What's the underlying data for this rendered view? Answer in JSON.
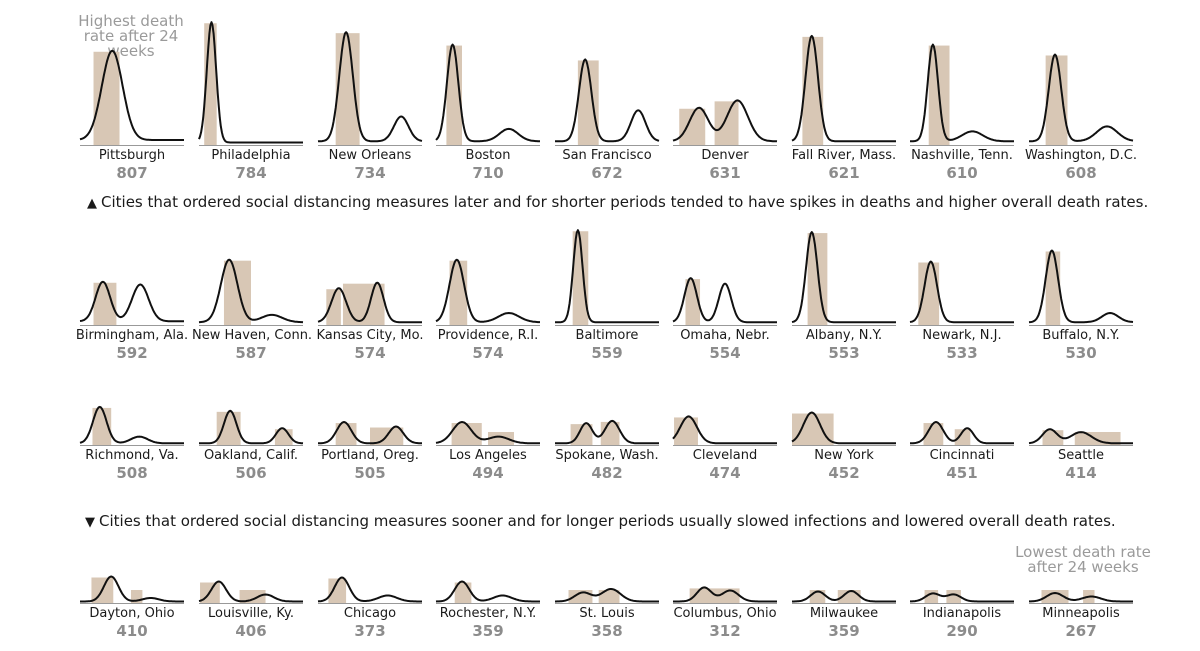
{
  "annotations": {
    "top_left": "Highest death rate after 24 weeks",
    "bottom_right": "Lowest death rate after 24 weeks",
    "note_later": "Cities that ordered social distancing measures later and for shorter periods tended to have spikes in deaths and higher overall death rates.",
    "note_sooner": "Cities that ordered social distancing measures sooner and for longer periods usually slowed infections and lowered overall death rates.",
    "triangle_up": "▲",
    "triangle_down": "▼"
  },
  "colors": {
    "curve": "#111111",
    "shading": "#d8c7b5",
    "baseline": "#999999",
    "rate": "#8c8c8c"
  },
  "chart_data": {
    "type": "line",
    "description_series": "Weekly death curve over 24 weeks with shaded social distancing periods",
    "cities": [
      {
        "name": "Pittsburgh",
        "rate": 807,
        "peaks": [
          [
            0.31,
            0.72,
            0.1
          ]
        ],
        "tail": 0.04,
        "distancing": [
          [
            0.13,
            0.38
          ]
        ]
      },
      {
        "name": "Philadelphia",
        "rate": 784,
        "peaks": [
          [
            0.12,
            0.97,
            0.045
          ]
        ],
        "tail": 0.02,
        "distancing": [
          [
            0.05,
            0.17
          ]
        ]
      },
      {
        "name": "New Orleans",
        "rate": 734,
        "peaks": [
          [
            0.27,
            0.88,
            0.065
          ],
          [
            0.8,
            0.2,
            0.07
          ]
        ],
        "tail": 0.03,
        "distancing": [
          [
            0.17,
            0.4
          ]
        ]
      },
      {
        "name": "Boston",
        "rate": 710,
        "peaks": [
          [
            0.16,
            0.78,
            0.055
          ],
          [
            0.7,
            0.1,
            0.09
          ]
        ],
        "tail": 0.03,
        "distancing": [
          [
            0.1,
            0.25
          ]
        ]
      },
      {
        "name": "San Francisco",
        "rate": 672,
        "peaks": [
          [
            0.29,
            0.66,
            0.06
          ],
          [
            0.8,
            0.25,
            0.07
          ]
        ],
        "tail": 0.03,
        "distancing": [
          [
            0.22,
            0.42
          ]
        ]
      },
      {
        "name": "Denver",
        "rate": 631,
        "peaks": [
          [
            0.25,
            0.27,
            0.09
          ],
          [
            0.62,
            0.33,
            0.1
          ]
        ],
        "tail": 0.03,
        "distancing": [
          [
            0.06,
            0.31
          ],
          [
            0.4,
            0.63
          ]
        ]
      },
      {
        "name": "Fall River, Mass.",
        "rate": 621,
        "peaks": [
          [
            0.19,
            0.85,
            0.06
          ]
        ],
        "tail": 0.03,
        "distancing": [
          [
            0.1,
            0.3
          ]
        ]
      },
      {
        "name": "Nashville, Tenn.",
        "rate": 610,
        "peaks": [
          [
            0.22,
            0.78,
            0.05
          ],
          [
            0.6,
            0.08,
            0.1
          ]
        ],
        "tail": 0.03,
        "distancing": [
          [
            0.18,
            0.38
          ]
        ]
      },
      {
        "name": "Washington, D.C.",
        "rate": 608,
        "peaks": [
          [
            0.25,
            0.7,
            0.06
          ],
          [
            0.75,
            0.12,
            0.1
          ]
        ],
        "tail": 0.03,
        "distancing": [
          [
            0.16,
            0.37
          ]
        ]
      },
      {
        "name": "Birmingham, Ala.",
        "rate": 592,
        "peaks": [
          [
            0.22,
            0.43,
            0.07
          ],
          [
            0.58,
            0.4,
            0.08
          ]
        ],
        "tail": 0.04,
        "distancing": [
          [
            0.13,
            0.35
          ]
        ]
      },
      {
        "name": "New Haven, Conn.",
        "rate": 587,
        "peaks": [
          [
            0.29,
            0.68,
            0.08
          ],
          [
            0.7,
            0.08,
            0.1
          ]
        ],
        "tail": 0.03,
        "distancing": [
          [
            0.24,
            0.5
          ]
        ]
      },
      {
        "name": "Kansas City, Mo.",
        "rate": 574,
        "peaks": [
          [
            0.2,
            0.37,
            0.07
          ],
          [
            0.57,
            0.43,
            0.06
          ]
        ],
        "tail": 0.03,
        "distancing": [
          [
            0.08,
            0.22
          ],
          [
            0.24,
            0.64
          ]
        ]
      },
      {
        "name": "Providence, R.I.",
        "rate": 574,
        "peaks": [
          [
            0.2,
            0.68,
            0.07
          ],
          [
            0.7,
            0.1,
            0.1
          ]
        ],
        "tail": 0.03,
        "distancing": [
          [
            0.13,
            0.3
          ]
        ]
      },
      {
        "name": "Baltimore",
        "rate": 559,
        "peaks": [
          [
            0.22,
            1.0,
            0.045
          ]
        ],
        "tail": 0.03,
        "distancing": [
          [
            0.17,
            0.32
          ]
        ]
      },
      {
        "name": "Omaha, Nebr.",
        "rate": 554,
        "peaks": [
          [
            0.17,
            0.48,
            0.06
          ],
          [
            0.5,
            0.42,
            0.06
          ]
        ],
        "tail": 0.03,
        "distancing": [
          [
            0.12,
            0.26
          ]
        ]
      },
      {
        "name": "Albany, N.Y.",
        "rate": 553,
        "peaks": [
          [
            0.19,
            0.98,
            0.055
          ]
        ],
        "tail": 0.03,
        "distancing": [
          [
            0.15,
            0.34
          ]
        ]
      },
      {
        "name": "Newark, N.J.",
        "rate": 533,
        "peaks": [
          [
            0.2,
            0.66,
            0.06
          ]
        ],
        "tail": 0.03,
        "distancing": [
          [
            0.08,
            0.28
          ]
        ]
      },
      {
        "name": "Buffalo, N.Y.",
        "rate": 530,
        "peaks": [
          [
            0.22,
            0.78,
            0.06
          ],
          [
            0.78,
            0.1,
            0.08
          ]
        ],
        "tail": 0.03,
        "distancing": [
          [
            0.16,
            0.3
          ]
        ]
      },
      {
        "name": "Richmond, Va.",
        "rate": 508,
        "peaks": [
          [
            0.19,
            0.65,
            0.065
          ],
          [
            0.57,
            0.12,
            0.08
          ]
        ],
        "tail": 0.03,
        "distancing": [
          [
            0.12,
            0.3
          ]
        ]
      },
      {
        "name": "Oakland, Calif.",
        "rate": 506,
        "peaks": [
          [
            0.3,
            0.58,
            0.06
          ],
          [
            0.8,
            0.27,
            0.06
          ]
        ],
        "tail": 0.03,
        "distancing": [
          [
            0.17,
            0.4
          ],
          [
            0.73,
            0.9
          ]
        ]
      },
      {
        "name": "Portland, Oreg.",
        "rate": 505,
        "peaks": [
          [
            0.25,
            0.38,
            0.07
          ],
          [
            0.75,
            0.3,
            0.07
          ]
        ],
        "tail": 0.03,
        "distancing": [
          [
            0.17,
            0.37
          ],
          [
            0.5,
            0.82
          ]
        ]
      },
      {
        "name": "Los Angeles",
        "rate": 494,
        "peaks": [
          [
            0.25,
            0.38,
            0.09
          ],
          [
            0.6,
            0.12,
            0.1
          ]
        ],
        "tail": 0.03,
        "distancing": [
          [
            0.15,
            0.44
          ],
          [
            0.5,
            0.75
          ]
        ]
      },
      {
        "name": "Spokane, Wash.",
        "rate": 482,
        "peaks": [
          [
            0.3,
            0.36,
            0.06
          ],
          [
            0.55,
            0.4,
            0.07
          ]
        ],
        "tail": 0.03,
        "distancing": [
          [
            0.15,
            0.36
          ],
          [
            0.44,
            0.62
          ]
        ]
      },
      {
        "name": "Cleveland",
        "rate": 474,
        "peaks": [
          [
            0.15,
            0.48,
            0.08
          ]
        ],
        "tail": 0.03,
        "distancing": [
          [
            0.01,
            0.24
          ]
        ]
      },
      {
        "name": "New York",
        "rate": 452,
        "peaks": [
          [
            0.19,
            0.55,
            0.08
          ]
        ],
        "tail": 0.03,
        "distancing": [
          [
            0.0,
            0.4
          ]
        ]
      },
      {
        "name": "Cincinnati",
        "rate": 451,
        "peaks": [
          [
            0.25,
            0.38,
            0.07
          ],
          [
            0.55,
            0.27,
            0.06
          ]
        ],
        "tail": 0.03,
        "distancing": [
          [
            0.13,
            0.32
          ],
          [
            0.43,
            0.58
          ]
        ]
      },
      {
        "name": "Seattle",
        "rate": 414,
        "peaks": [
          [
            0.2,
            0.25,
            0.07
          ],
          [
            0.5,
            0.2,
            0.1
          ]
        ],
        "tail": 0.03,
        "distancing": [
          [
            0.13,
            0.33
          ],
          [
            0.44,
            0.88
          ]
        ]
      },
      {
        "name": "Dayton, Ohio",
        "rate": 410,
        "peaks": [
          [
            0.3,
            0.5,
            0.07
          ],
          [
            0.68,
            0.07,
            0.08
          ]
        ],
        "tail": 0.03,
        "distancing": [
          [
            0.11,
            0.32
          ],
          [
            0.49,
            0.6
          ]
        ]
      },
      {
        "name": "Louisville, Ky.",
        "rate": 406,
        "peaks": [
          [
            0.19,
            0.4,
            0.07
          ],
          [
            0.64,
            0.14,
            0.08
          ]
        ],
        "tail": 0.03,
        "distancing": [
          [
            0.01,
            0.2
          ],
          [
            0.39,
            0.64
          ]
        ]
      },
      {
        "name": "Chicago",
        "rate": 373,
        "peaks": [
          [
            0.23,
            0.48,
            0.07
          ],
          [
            0.67,
            0.12,
            0.09
          ]
        ],
        "tail": 0.03,
        "distancing": [
          [
            0.1,
            0.27
          ]
        ]
      },
      {
        "name": "Rochester, N.Y.",
        "rate": 359,
        "peaks": [
          [
            0.25,
            0.4,
            0.07
          ],
          [
            0.64,
            0.12,
            0.09
          ]
        ],
        "tail": 0.03,
        "distancing": [
          [
            0.18,
            0.34
          ]
        ]
      },
      {
        "name": "St. Louis",
        "rate": 358,
        "peaks": [
          [
            0.27,
            0.18,
            0.08
          ],
          [
            0.54,
            0.25,
            0.09
          ]
        ],
        "tail": 0.03,
        "distancing": [
          [
            0.13,
            0.36
          ],
          [
            0.42,
            0.62
          ]
        ]
      },
      {
        "name": "Columbus, Ohio",
        "rate": 312,
        "peaks": [
          [
            0.3,
            0.28,
            0.07
          ],
          [
            0.55,
            0.22,
            0.08
          ]
        ],
        "tail": 0.03,
        "distancing": [
          [
            0.16,
            0.64
          ]
        ]
      },
      {
        "name": "Milwaukee",
        "rate": 359,
        "peaks": [
          [
            0.25,
            0.2,
            0.07
          ],
          [
            0.57,
            0.21,
            0.07
          ]
        ],
        "tail": 0.03,
        "distancing": [
          [
            0.17,
            0.32
          ],
          [
            0.44,
            0.66
          ]
        ]
      },
      {
        "name": "Indianapolis",
        "rate": 290,
        "peaks": [
          [
            0.22,
            0.16,
            0.07
          ],
          [
            0.42,
            0.14,
            0.07
          ]
        ],
        "tail": 0.03,
        "distancing": [
          [
            0.14,
            0.27
          ],
          [
            0.35,
            0.49
          ]
        ]
      },
      {
        "name": "Minneapolis",
        "rate": 267,
        "peaks": [
          [
            0.25,
            0.17,
            0.08
          ],
          [
            0.6,
            0.1,
            0.09
          ]
        ],
        "tail": 0.03,
        "distancing": [
          [
            0.12,
            0.38
          ],
          [
            0.52,
            0.63
          ]
        ]
      }
    ]
  }
}
